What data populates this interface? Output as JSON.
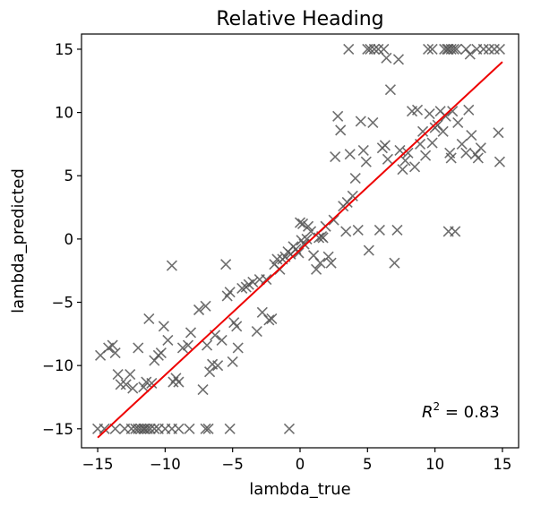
{
  "chart_data": {
    "type": "scatter",
    "title": "Relative Heading",
    "xlabel": "lambda_true",
    "ylabel": "lambda_predicted",
    "xlim": [
      -16.2,
      16.2
    ],
    "ylim": [
      -16.5,
      16.2
    ],
    "xticks": [
      -15,
      -10,
      -5,
      0,
      5,
      10,
      15
    ],
    "yticks": [
      -15,
      -10,
      -5,
      0,
      5,
      10,
      15
    ],
    "xtick_labels": [
      "−15",
      "−10",
      "−5",
      "0",
      "5",
      "10",
      "15"
    ],
    "ytick_labels": [
      "−15",
      "−10",
      "−5",
      "0",
      "5",
      "10",
      "15"
    ],
    "grid": false,
    "annotation": {
      "prefix": "R",
      "sup": "2",
      "suffix": " = 0.83"
    },
    "marker": {
      "shape": "x",
      "color": "#555555"
    },
    "fit_line": {
      "color": "#ee0000",
      "x": [
        -15,
        15
      ],
      "y": [
        -15.7,
        14.0
      ]
    },
    "series": [
      {
        "points": [
          [
            -15.0,
            -15.0
          ],
          [
            -14.5,
            -15.0
          ],
          [
            -13.7,
            -15.0
          ],
          [
            -13.0,
            -15.0
          ],
          [
            -12.5,
            -15.0
          ],
          [
            -12.2,
            -15.0
          ],
          [
            -12.0,
            -15.0
          ],
          [
            -11.8,
            -15.0
          ],
          [
            -11.6,
            -15.0
          ],
          [
            -11.5,
            -15.0
          ],
          [
            -11.3,
            -15.0
          ],
          [
            -11.1,
            -15.0
          ],
          [
            -10.8,
            -15.0
          ],
          [
            -10.5,
            -15.0
          ],
          [
            -10.0,
            -15.0
          ],
          [
            -9.5,
            -15.0
          ],
          [
            -9.0,
            -15.0
          ],
          [
            -8.2,
            -15.0
          ],
          [
            -7.0,
            -15.0
          ],
          [
            -6.8,
            -15.0
          ],
          [
            -5.2,
            -15.0
          ],
          [
            -0.8,
            -15.0
          ],
          [
            -14.8,
            -9.2
          ],
          [
            -14.2,
            -8.6
          ],
          [
            -13.9,
            -8.4
          ],
          [
            -13.7,
            -9.0
          ],
          [
            -13.5,
            -10.7
          ],
          [
            -13.3,
            -11.5
          ],
          [
            -12.9,
            -11.5
          ],
          [
            -12.6,
            -10.7
          ],
          [
            -12.4,
            -11.8
          ],
          [
            -12.0,
            -8.6
          ],
          [
            -11.6,
            -11.7
          ],
          [
            -11.4,
            -11.3
          ],
          [
            -11.2,
            -6.3
          ],
          [
            -11.0,
            -11.4
          ],
          [
            -10.8,
            -9.6
          ],
          [
            -10.5,
            -9.2
          ],
          [
            -10.3,
            -9.0
          ],
          [
            -10.1,
            -6.9
          ],
          [
            -9.8,
            -8.0
          ],
          [
            -9.5,
            -2.1
          ],
          [
            -9.4,
            -11.3
          ],
          [
            -9.2,
            -11.0
          ],
          [
            -9.0,
            -11.3
          ],
          [
            -8.7,
            -8.6
          ],
          [
            -8.3,
            -8.4
          ],
          [
            -8.1,
            -7.4
          ],
          [
            -7.5,
            -5.6
          ],
          [
            -7.2,
            -11.9
          ],
          [
            -7.0,
            -5.3
          ],
          [
            -6.9,
            -8.4
          ],
          [
            -6.7,
            -10.5
          ],
          [
            -6.5,
            -9.9
          ],
          [
            -6.3,
            -7.6
          ],
          [
            -6.1,
            -10.0
          ],
          [
            -5.8,
            -8.0
          ],
          [
            -5.5,
            -2.0
          ],
          [
            -5.4,
            -4.5
          ],
          [
            -5.2,
            -4.2
          ],
          [
            -5.0,
            -9.7
          ],
          [
            -4.9,
            -6.6
          ],
          [
            -4.7,
            -6.9
          ],
          [
            -4.6,
            -8.6
          ],
          [
            -4.3,
            -3.9
          ],
          [
            -4.0,
            -3.8
          ],
          [
            -3.8,
            -3.6
          ],
          [
            -3.5,
            -3.4
          ],
          [
            -3.2,
            -7.3
          ],
          [
            -3.0,
            -3.2
          ],
          [
            -2.8,
            -5.8
          ],
          [
            -2.5,
            -3.2
          ],
          [
            -2.3,
            -6.4
          ],
          [
            -2.1,
            -6.3
          ],
          [
            -1.9,
            -2.0
          ],
          [
            -1.7,
            -1.6
          ],
          [
            -1.5,
            -2.4
          ],
          [
            -1.3,
            -1.6
          ],
          [
            -1.1,
            -1.4
          ],
          [
            -0.9,
            -1.0
          ],
          [
            -0.7,
            -1.2
          ],
          [
            -0.5,
            -0.6
          ],
          [
            -0.3,
            -0.8
          ],
          [
            -0.1,
            -1.1
          ],
          [
            0.0,
            1.3
          ],
          [
            0.1,
            -0.1
          ],
          [
            0.2,
            1.2
          ],
          [
            0.3,
            -0.4
          ],
          [
            0.5,
            0.0
          ],
          [
            0.6,
            1.0
          ],
          [
            0.8,
            0.6
          ],
          [
            1.0,
            -1.3
          ],
          [
            1.2,
            -2.4
          ],
          [
            1.4,
            0.1
          ],
          [
            1.5,
            -1.9
          ],
          [
            1.6,
            0.2
          ],
          [
            1.7,
            0.1
          ],
          [
            1.9,
            1.0
          ],
          [
            2.1,
            -1.4
          ],
          [
            2.3,
            -1.9
          ],
          [
            2.5,
            1.5
          ],
          [
            2.6,
            6.5
          ],
          [
            2.8,
            9.7
          ],
          [
            3.0,
            8.6
          ],
          [
            3.2,
            2.6
          ],
          [
            3.4,
            0.6
          ],
          [
            3.5,
            2.9
          ],
          [
            3.7,
            6.7
          ],
          [
            3.9,
            3.4
          ],
          [
            4.1,
            4.8
          ],
          [
            4.3,
            0.7
          ],
          [
            4.5,
            9.3
          ],
          [
            4.7,
            7.0
          ],
          [
            4.9,
            6.1
          ],
          [
            5.1,
            -0.9
          ],
          [
            5.4,
            9.2
          ],
          [
            5.9,
            0.7
          ],
          [
            6.1,
            7.2
          ],
          [
            6.3,
            7.4
          ],
          [
            6.5,
            6.3
          ],
          [
            6.7,
            11.8
          ],
          [
            7.0,
            -1.9
          ],
          [
            7.2,
            0.7
          ],
          [
            7.4,
            7.0
          ],
          [
            7.6,
            5.5
          ],
          [
            7.8,
            6.2
          ],
          [
            8.0,
            6.8
          ],
          [
            8.3,
            10.1
          ],
          [
            8.5,
            5.7
          ],
          [
            8.7,
            10.2
          ],
          [
            8.9,
            7.5
          ],
          [
            9.1,
            8.5
          ],
          [
            9.3,
            6.6
          ],
          [
            9.6,
            9.9
          ],
          [
            9.8,
            7.6
          ],
          [
            10.0,
            8.8
          ],
          [
            10.2,
            9.0
          ],
          [
            10.4,
            10.1
          ],
          [
            10.6,
            8.5
          ],
          [
            10.8,
            9.7
          ],
          [
            11.0,
            0.6
          ],
          [
            11.1,
            6.8
          ],
          [
            11.2,
            6.4
          ],
          [
            11.3,
            10.1
          ],
          [
            11.5,
            0.6
          ],
          [
            11.7,
            9.2
          ],
          [
            12.0,
            7.5
          ],
          [
            12.3,
            6.8
          ],
          [
            12.5,
            10.2
          ],
          [
            12.7,
            8.2
          ],
          [
            13.0,
            6.7
          ],
          [
            13.2,
            6.4
          ],
          [
            13.4,
            7.2
          ],
          [
            14.7,
            8.4
          ],
          [
            14.8,
            6.1
          ],
          [
            3.6,
            15.0
          ],
          [
            5.0,
            15.0
          ],
          [
            5.2,
            15.0
          ],
          [
            5.5,
            15.0
          ],
          [
            5.8,
            15.0
          ],
          [
            6.2,
            15.0
          ],
          [
            6.4,
            14.3
          ],
          [
            7.3,
            14.2
          ],
          [
            9.5,
            15.0
          ],
          [
            9.8,
            15.0
          ],
          [
            10.7,
            15.0
          ],
          [
            10.9,
            15.0
          ],
          [
            11.0,
            15.0
          ],
          [
            11.2,
            15.0
          ],
          [
            11.4,
            15.0
          ],
          [
            11.6,
            15.0
          ],
          [
            12.3,
            15.0
          ],
          [
            12.6,
            14.6
          ],
          [
            13.1,
            15.0
          ],
          [
            13.6,
            15.0
          ],
          [
            14.0,
            15.0
          ],
          [
            14.4,
            15.0
          ],
          [
            14.8,
            15.0
          ]
        ]
      }
    ]
  }
}
